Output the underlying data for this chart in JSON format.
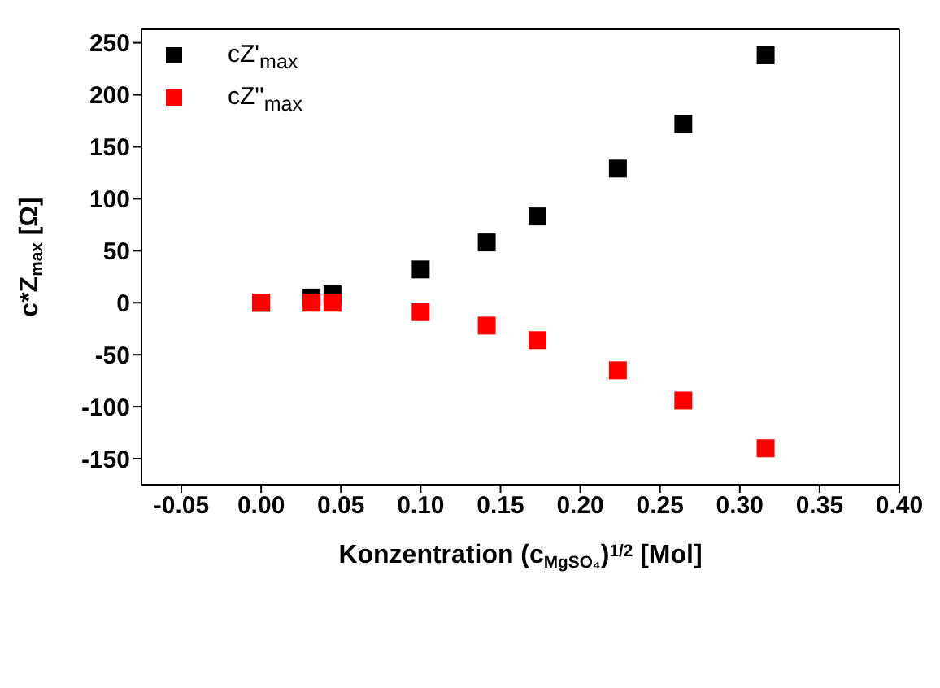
{
  "chart_data": {
    "type": "scatter",
    "xlabel": "Konzentration (c$_{MgSO₄}$)$^{1/2}$ [Mol]",
    "ylabel": "c*Z$_{max}$ [Ω]",
    "x": [
      0,
      0.0316,
      0.0447,
      0.1,
      0.1414,
      0.1732,
      0.2236,
      0.2646,
      0.3162
    ],
    "series": [
      {
        "name": "cZ'$_{max}$",
        "color": "#000000",
        "values": [
          0,
          5,
          8,
          32,
          58,
          83,
          129,
          172,
          238
        ]
      },
      {
        "name": "cZ''$_{max}$",
        "color": "#ff0000",
        "values": [
          0,
          0,
          0,
          -9,
          -22,
          -36,
          -65,
          -94,
          -140
        ]
      }
    ],
    "xlim": [
      -0.075,
      0.4
    ],
    "xticks": [
      -0.05,
      {
        "value": 0,
        "label": "0.00"
      },
      0.05,
      {
        "value": 0.1,
        "label": "0.10"
      },
      0.15,
      {
        "value": 0.2,
        "label": "0.20"
      },
      0.25,
      {
        "value": 0.3,
        "label": "0.30"
      },
      0.35,
      {
        "value": 0.4,
        "label": "0.40"
      }
    ],
    "ylim": [
      -175,
      263
    ],
    "yticks": [
      -150,
      -100,
      -50,
      0,
      50,
      100,
      150,
      200,
      250
    ],
    "marker": "square",
    "legend": "top left",
    "grid": false
  }
}
